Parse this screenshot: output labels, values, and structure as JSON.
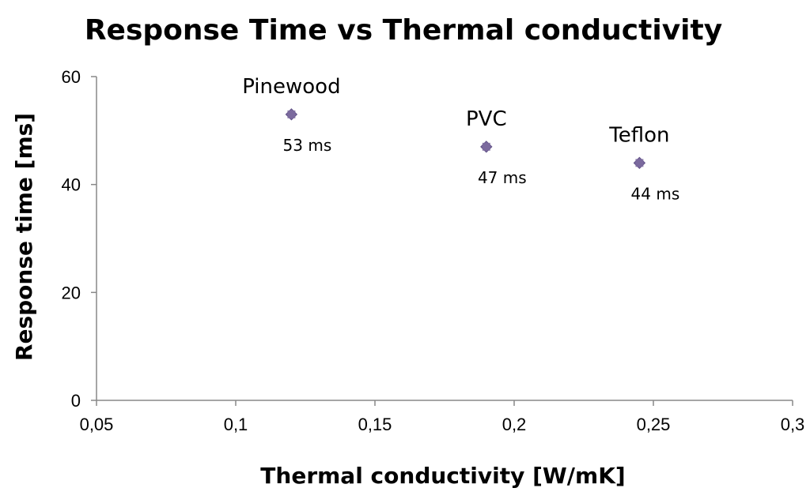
{
  "chart_data": {
    "type": "scatter",
    "title": "Response Time vs Thermal conductivity",
    "xlabel": "Thermal conductivity [W/mK]",
    "ylabel": "Response time [ms]",
    "xlim": [
      0.05,
      0.3
    ],
    "ylim": [
      0,
      60
    ],
    "x_ticks": [
      "0,05",
      "0,1",
      "0,15",
      "0,2",
      "0,25",
      "0,3"
    ],
    "x_tick_values": [
      0.05,
      0.1,
      0.15,
      0.2,
      0.25,
      0.3
    ],
    "y_ticks": [
      "0",
      "20",
      "40",
      "60"
    ],
    "y_tick_values": [
      0,
      20,
      40,
      60
    ],
    "grid": false,
    "marker_color": "#7b6a9e",
    "points": [
      {
        "name": "Pinewood",
        "x": 0.12,
        "y": 53,
        "label": "53 ms"
      },
      {
        "name": "PVC",
        "x": 0.19,
        "y": 47,
        "label": "47 ms"
      },
      {
        "name": "Teflon",
        "x": 0.245,
        "y": 44,
        "label": "44 ms"
      }
    ]
  }
}
